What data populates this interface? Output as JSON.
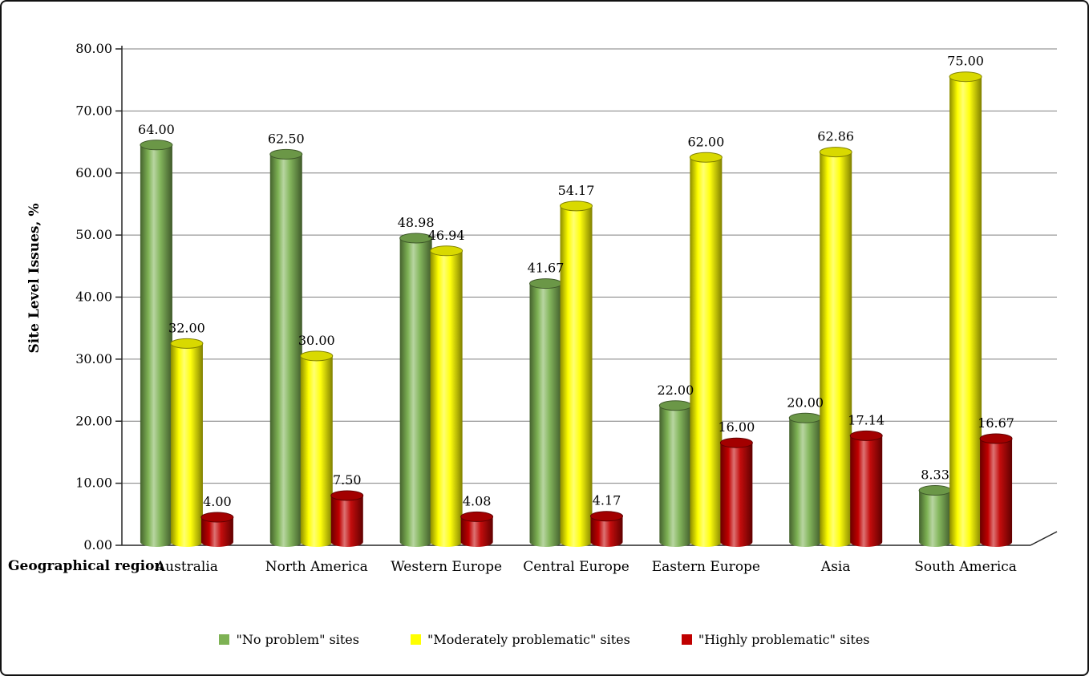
{
  "frame": {
    "background": "#ffffff",
    "border_color": "#111111"
  },
  "chart_data": {
    "type": "bar",
    "subtype": "3d-cylinder-clustered",
    "title": "",
    "xlabel": "Geographical region",
    "ylabel": "Site Level Issues, %",
    "ylim": [
      0,
      80
    ],
    "ytick_step": 10,
    "ytick_labels": [
      "0.00",
      "10.00",
      "20.00",
      "30.00",
      "40.00",
      "50.00",
      "60.00",
      "70.00",
      "80.00"
    ],
    "grid": true,
    "gridline_color": "#7f7f7f",
    "axis_color": "#262626",
    "legend_position": "bottom",
    "value_label_decimals": 2,
    "categories": [
      "Australia",
      "North America",
      "Western Europe",
      "Central Europe",
      "Eastern Europe",
      "Asia",
      "South America"
    ],
    "series": [
      {
        "name": "\"No problem\" sites",
        "color": "#7EB254",
        "values": [
          64.0,
          62.5,
          48.98,
          41.67,
          22.0,
          20.0,
          8.33
        ]
      },
      {
        "name": "\"Moderately problematic\" sites",
        "color": "#FFFF00",
        "values": [
          32.0,
          30.0,
          46.94,
          54.17,
          62.0,
          62.86,
          75.0
        ]
      },
      {
        "name": "\"Highly problematic\" sites",
        "color": "#C00000",
        "values": [
          4.0,
          7.5,
          4.08,
          4.17,
          16.0,
          17.14,
          16.67
        ]
      }
    ]
  }
}
